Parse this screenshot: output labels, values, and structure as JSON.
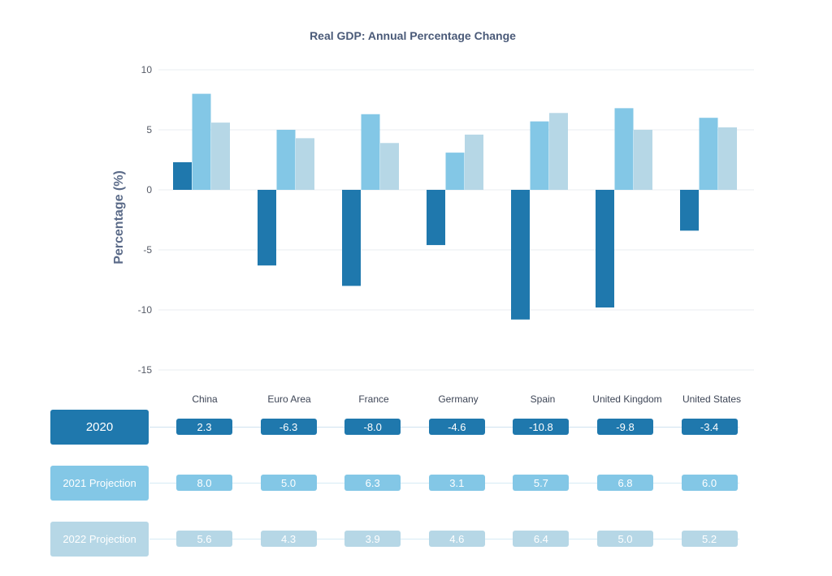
{
  "chart_data": {
    "type": "bar",
    "title": "Real GDP: Annual Percentage Change",
    "xlabel": "",
    "ylabel": "Percentage (%)",
    "ylim": [
      -15,
      10
    ],
    "yticks": [
      "10",
      "5",
      "0",
      "-5",
      "-10",
      "-15"
    ],
    "ytick_values": [
      10,
      5,
      0,
      -5,
      -10,
      -15
    ],
    "categories": [
      "China",
      "Euro Area",
      "France",
      "Germany",
      "Spain",
      "United Kingdom",
      "United States"
    ],
    "grid": true,
    "series": [
      {
        "name": "2020",
        "color": "#1f78ad",
        "values": [
          2.3,
          -6.3,
          -8.0,
          -4.6,
          -10.8,
          -9.8,
          -3.4
        ],
        "labels": [
          "2.3",
          "-6.3",
          "-8.0",
          "-4.6",
          "-10.8",
          "-9.8",
          "-3.4"
        ]
      },
      {
        "name": "2021 Projection",
        "color": "#83c7e6",
        "values": [
          8.0,
          5.0,
          6.3,
          3.1,
          5.7,
          6.8,
          6.0
        ],
        "labels": [
          "8.0",
          "5.0",
          "6.3",
          "3.1",
          "5.7",
          "6.8",
          "6.0"
        ]
      },
      {
        "name": "2022 Projection",
        "color": "#b6d7e6",
        "values": [
          5.6,
          4.3,
          3.9,
          4.6,
          6.4,
          5.0,
          5.2
        ],
        "labels": [
          "5.6",
          "4.3",
          "3.9",
          "4.6",
          "6.4",
          "5.0",
          "5.2"
        ]
      }
    ]
  }
}
